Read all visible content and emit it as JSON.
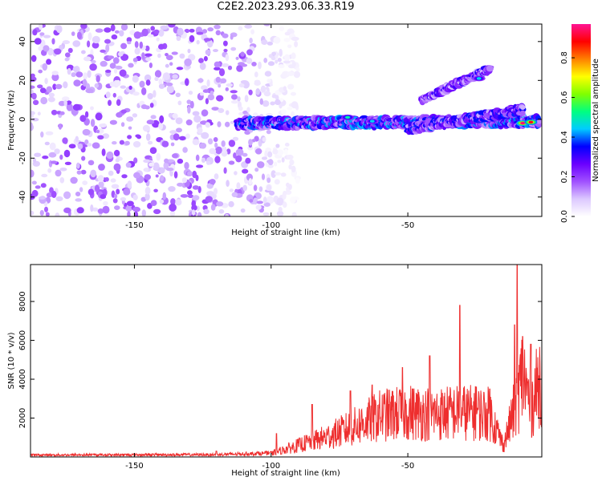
{
  "title": "C2E2.2023.293.06.33.R19",
  "chart_data": [
    {
      "type": "heatmap",
      "xlabel": "Height of straight line (km)",
      "ylabel": "Frequency (Hz)",
      "xlim": [
        -188,
        -1
      ],
      "ylim": [
        -50,
        49
      ],
      "xticks": [
        -150,
        -100,
        -50
      ],
      "yticks": [
        -40,
        -20,
        0,
        20,
        40
      ],
      "colorbar": {
        "label": "Normalized spectral amplitude",
        "range": [
          0,
          0.97
        ],
        "ticks": [
          0.0,
          0.2,
          0.4,
          0.6,
          0.8
        ],
        "tick_labels": [
          "0.0",
          "0.2",
          "0.4",
          "0.6",
          "0.8"
        ],
        "colormap": [
          "#ffffff",
          "#dcc8ff",
          "#a050ff",
          "#6a00ff",
          "#0000ff",
          "#00ccff",
          "#00ff80",
          "#80ff00",
          "#ffff00",
          "#ff8000",
          "#ff0000",
          "#ff1493"
        ]
      },
      "noise_region_x": [
        -188,
        -95
      ],
      "noise_amplitude": 0.2,
      "bands": [
        {
          "x_range": [
            -112,
            -2
          ],
          "freq_start": -2,
          "freq_end": -1,
          "width": 5,
          "amplitude": 0.4
        },
        {
          "x_range": [
            -50,
            -8
          ],
          "freq_start": -5,
          "freq_end": 5,
          "width": 4,
          "amplitude": 0.35
        },
        {
          "x_range": [
            -45,
            -20
          ],
          "freq_start": 10,
          "freq_end": 26,
          "width": 3,
          "amplitude": 0.3
        }
      ],
      "hotspots": [
        {
          "x": -8,
          "y": -2,
          "amplitude": 0.95
        },
        {
          "x": -5,
          "y": -1.5,
          "amplitude": 0.9
        },
        {
          "x": -24,
          "y": 21,
          "amplitude": 0.45
        },
        {
          "x": -72,
          "y": 1,
          "amplitude": 0.5
        },
        {
          "x": -63,
          "y": -1,
          "amplitude": 0.45
        }
      ]
    },
    {
      "type": "line",
      "xlabel": "Height of straight line (km)",
      "ylabel": "SNR (10 * v/v)",
      "xlim": [
        -188,
        -1
      ],
      "ylim": [
        0,
        9900
      ],
      "xticks": [
        -150,
        -100,
        -50
      ],
      "yticks": [
        2000,
        4000,
        6000,
        8000
      ],
      "color": "#ee2e2e",
      "envelope_x": [
        -188,
        -120,
        -100,
        -90,
        -80,
        -70,
        -60,
        -50,
        -40,
        -30,
        -20,
        -15,
        -10,
        -8,
        -5,
        -3,
        -1
      ],
      "envelope_y": [
        100,
        120,
        200,
        700,
        1200,
        1800,
        2500,
        2700,
        2600,
        2700,
        2600,
        700,
        3500,
        5000,
        3000,
        4000,
        5200
      ],
      "spike_x": [
        -120,
        -98,
        -85,
        -71,
        -63,
        -52,
        -42,
        -31,
        -25,
        -20,
        -11,
        -10,
        -8,
        -5
      ],
      "spike_y": [
        300,
        1200,
        2700,
        3400,
        3700,
        4600,
        5200,
        7800,
        3600,
        3500,
        6800,
        9900,
        6200,
        5800
      ]
    }
  ]
}
